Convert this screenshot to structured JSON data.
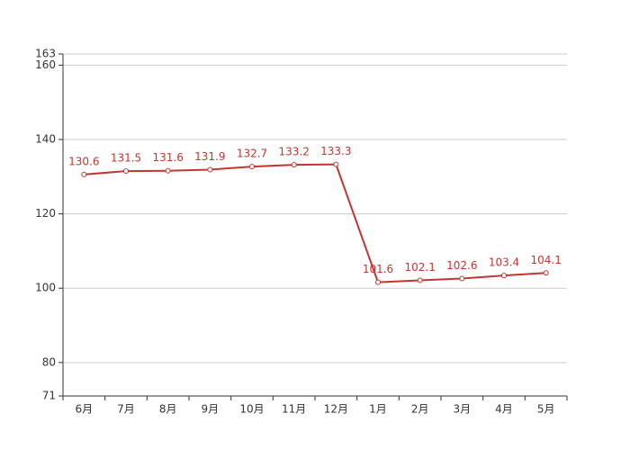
{
  "chart_data": {
    "type": "line",
    "categories": [
      "6月",
      "7月",
      "8月",
      "9月",
      "10月",
      "11月",
      "12月",
      "1月",
      "2月",
      "3月",
      "4月",
      "5月"
    ],
    "values": [
      130.6,
      131.5,
      131.6,
      131.9,
      132.7,
      133.2,
      133.3,
      101.6,
      102.1,
      102.6,
      103.4,
      104.1
    ],
    "color": "#c23531",
    "ylim": [
      71,
      163
    ],
    "yticks": [
      71,
      80,
      100,
      120,
      140,
      160,
      163
    ],
    "grid": true
  }
}
